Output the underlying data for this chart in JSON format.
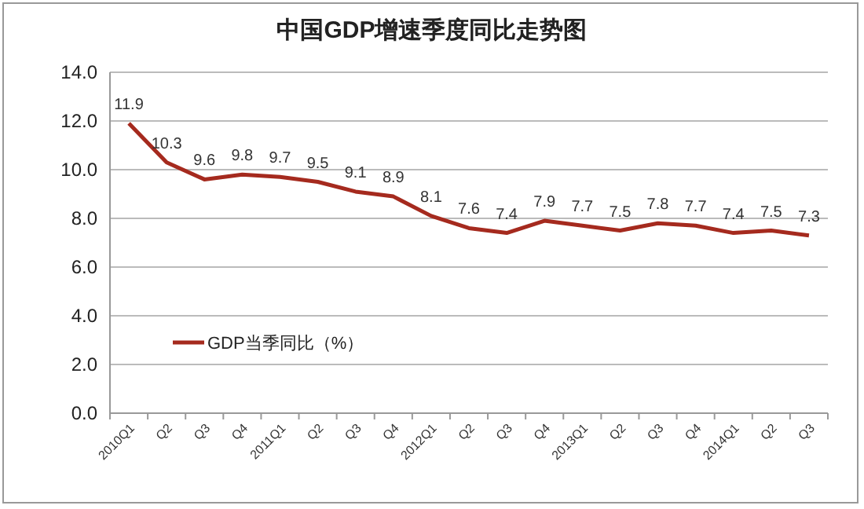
{
  "chart_data": {
    "type": "line",
    "title": "中国GDP增速季度同比走势图",
    "categories": [
      "2010Q1",
      "Q2",
      "Q3",
      "Q4",
      "2011Q1",
      "Q2",
      "Q3",
      "Q4",
      "2012Q1",
      "Q2",
      "Q3",
      "Q4",
      "2013Q1",
      "Q2",
      "Q3",
      "Q4",
      "2014Q1",
      "Q2",
      "Q3"
    ],
    "series": [
      {
        "name": "GDP当季同比（%）",
        "color": "#a52a1e",
        "values": [
          11.9,
          10.3,
          9.6,
          9.8,
          9.7,
          9.5,
          9.1,
          8.9,
          8.1,
          7.6,
          7.4,
          7.9,
          7.7,
          7.5,
          7.8,
          7.7,
          7.4,
          7.5,
          7.3
        ]
      }
    ],
    "ylim": [
      0,
      14
    ],
    "yticks": [
      {
        "value": 0,
        "label": "0.0"
      },
      {
        "value": 2,
        "label": "2.0"
      },
      {
        "value": 4,
        "label": "4.0"
      },
      {
        "value": 6,
        "label": "6.0"
      },
      {
        "value": 8,
        "label": "8.0"
      },
      {
        "value": 10,
        "label": "10.0"
      },
      {
        "value": 12,
        "label": "12.0"
      },
      {
        "value": 14,
        "label": "14.0"
      }
    ],
    "grid": "y",
    "legend": "bottom left",
    "data_labels": true,
    "marker": "none",
    "line_style": "solid"
  }
}
